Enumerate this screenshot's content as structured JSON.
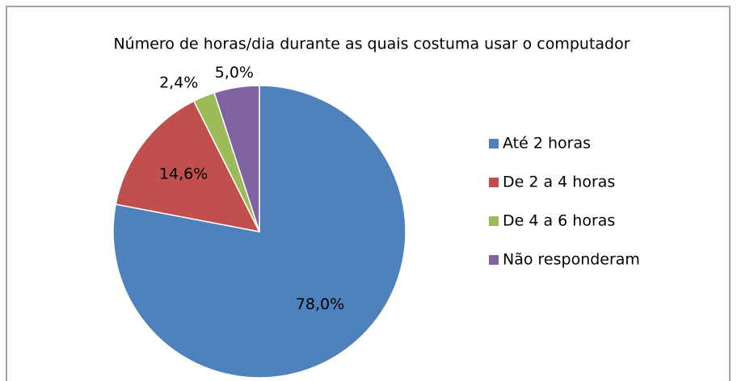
{
  "chart_data": {
    "type": "pie",
    "title": "Número de horas/dia durante as quais costuma usar o computador",
    "categories": [
      "Até 2 horas",
      "De 2 a 4 horas",
      "De 4 a 6 horas",
      "Não responderam"
    ],
    "values": [
      78.0,
      14.6,
      2.4,
      5.0
    ],
    "value_labels": [
      "78,0%",
      "14,6%",
      "2,4%",
      "5,0%"
    ],
    "colors": [
      "#4f81bd",
      "#c0504d",
      "#9bbb59",
      "#8064a2"
    ],
    "legend": "right"
  }
}
